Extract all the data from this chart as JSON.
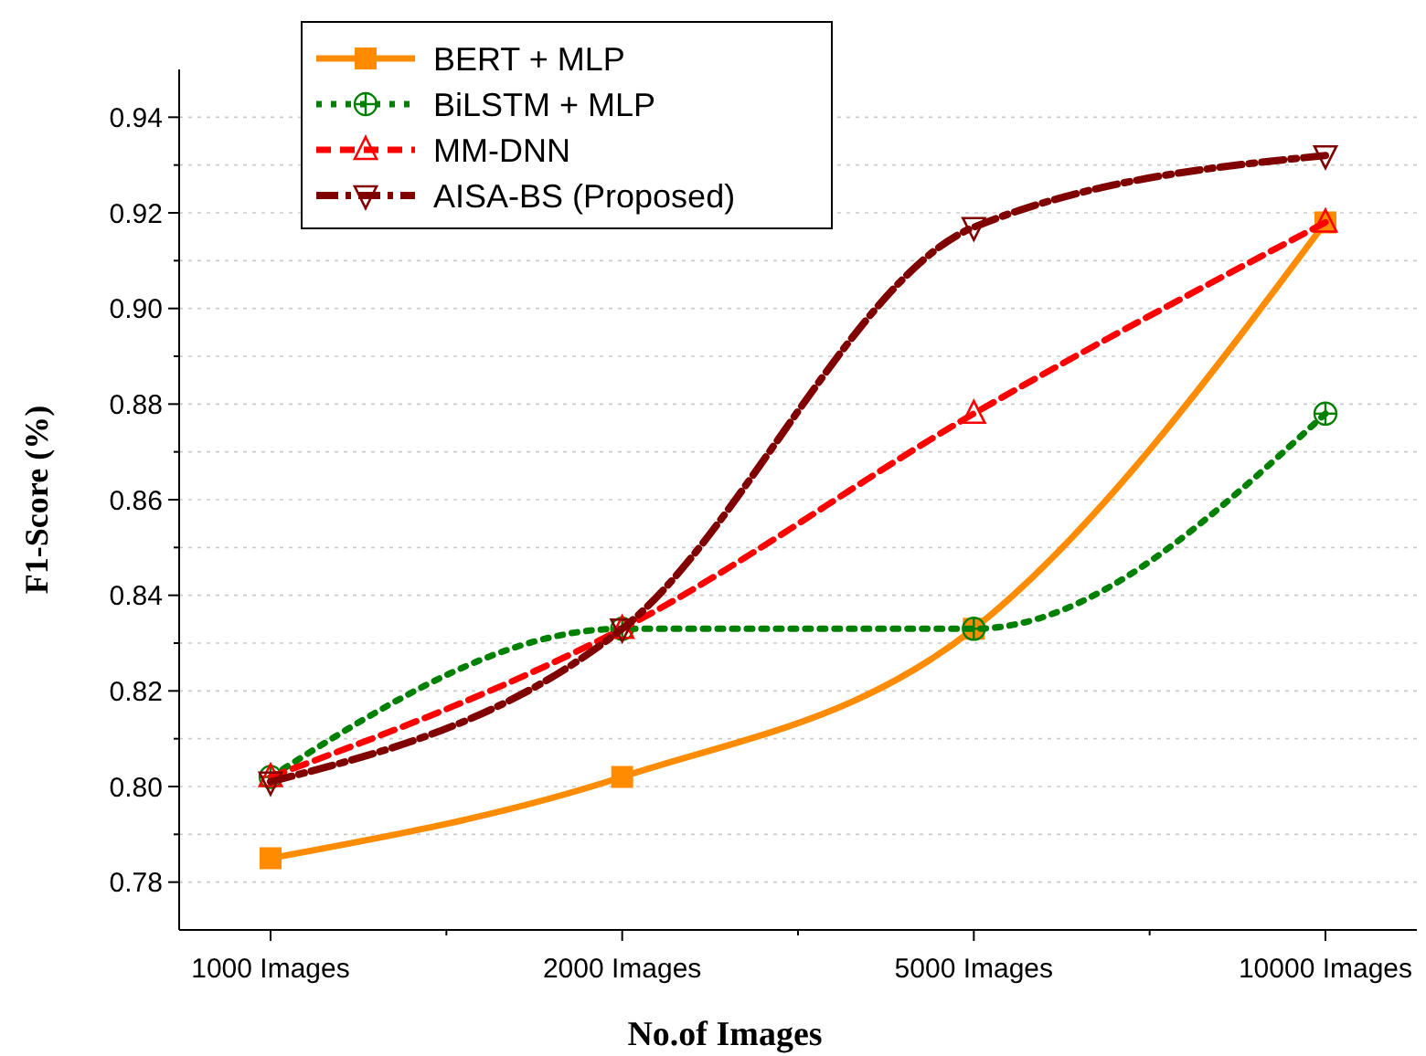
{
  "chart_data": {
    "type": "line",
    "xlabel": "No.of Images",
    "ylabel": "F1-Score (%)",
    "categories": [
      "1000 Images",
      "2000 Images",
      "5000 Images",
      "10000 Images"
    ],
    "ylim": [
      0.77,
      0.95
    ],
    "yticks": [
      0.78,
      {
        "value": 0.79,
        "label": null
      },
      {
        "value": 0.8,
        "label": "0.80"
      },
      {
        "value": 0.81,
        "label": null
      },
      0.82,
      {
        "value": 0.83,
        "label": null
      },
      0.84,
      {
        "value": 0.85,
        "label": null
      },
      0.86,
      {
        "value": 0.87,
        "label": null
      },
      0.88,
      {
        "value": 0.89,
        "label": null
      },
      {
        "value": 0.9,
        "label": "0.90"
      },
      {
        "value": 0.91,
        "label": null
      },
      0.92,
      {
        "value": 0.93,
        "label": null
      },
      0.94
    ],
    "grid": "y",
    "legend": "top left",
    "series": [
      {
        "name": "BERT + MLP",
        "color": "#ff8c00",
        "values": [
          0.785,
          0.802,
          0.833,
          0.918
        ],
        "marker": "square",
        "line_style": "solid"
      },
      {
        "name": "BiLSTM + MLP",
        "color": "#008000",
        "values": [
          0.802,
          0.833,
          0.833,
          0.878
        ],
        "marker": "circle",
        "line_style": "dotted"
      },
      {
        "name": "MM-DNN",
        "color": "#ff0000",
        "values": [
          0.802,
          0.833,
          0.878,
          0.918
        ],
        "marker": "triangle",
        "line_style": "dashed"
      },
      {
        "name": "AISA-BS (Proposed)",
        "color": "#800000",
        "values": [
          0.801,
          0.833,
          0.917,
          0.932
        ],
        "marker": "triangle-down",
        "line_style": "dashdot"
      }
    ]
  }
}
